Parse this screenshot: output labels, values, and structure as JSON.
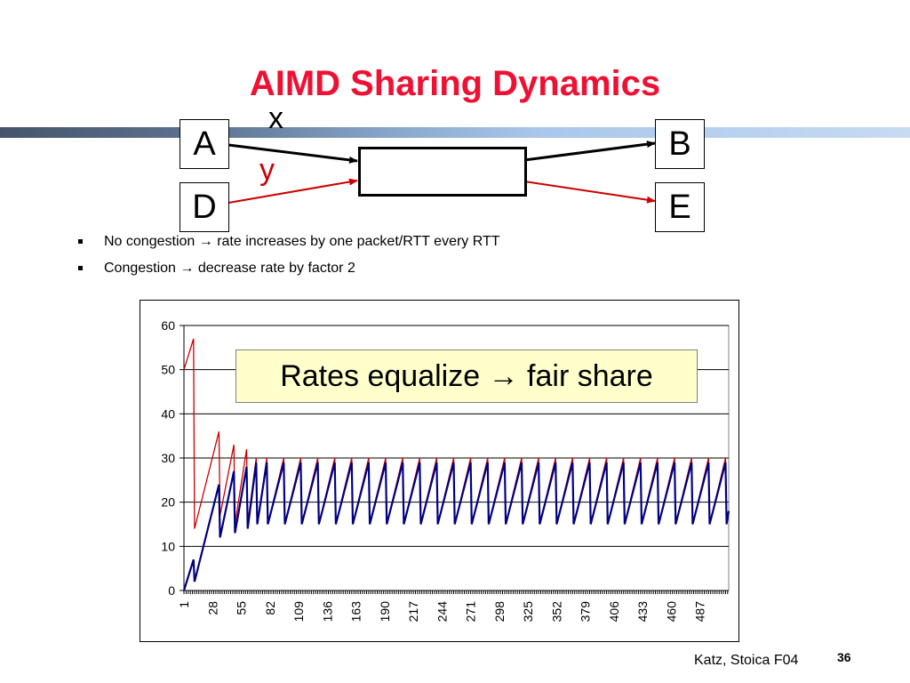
{
  "slide": {
    "title": "AIMD Sharing Dynamics",
    "page_number": "36",
    "footer": "Katz, Stoica F04",
    "accent_color": "#ee1133"
  },
  "diagram": {
    "nodes": {
      "a": "A",
      "b": "B",
      "d": "D",
      "e": "E"
    },
    "flow_x_label": "x",
    "flow_y_label": "y",
    "flow_x_color": "#000000",
    "flow_y_color": "#cc0000"
  },
  "bullets": [
    {
      "prefix": "No congestion",
      "arrow": "→",
      "text": "rate increases by one packet/RTT every RTT"
    },
    {
      "prefix": "Congestion",
      "arrow": "→",
      "text": "decrease rate by factor 2"
    }
  ],
  "callout": {
    "prefix": "Rates equalize",
    "arrow": "→",
    "text": "fair share"
  },
  "chart_data": {
    "type": "line",
    "title": "",
    "xlabel": "",
    "ylabel": "",
    "xlim": [
      1,
      514
    ],
    "ylim": [
      0,
      60
    ],
    "yticks": [
      0,
      10,
      20,
      30,
      40,
      50,
      60
    ],
    "xtick_labels": [
      "1",
      "28",
      "55",
      "82",
      "109",
      "136",
      "163",
      "190",
      "217",
      "244",
      "271",
      "298",
      "325",
      "352",
      "379",
      "406",
      "433",
      "460",
      "487"
    ],
    "grid": "horizontal",
    "series": [
      {
        "color": "#cc0000",
        "x": [
          1,
          10,
          11,
          34,
          35,
          48,
          49,
          60,
          61,
          69,
          70,
          79,
          80,
          95,
          96,
          111,
          112,
          127,
          128,
          143,
          144,
          159,
          160,
          175,
          176,
          191,
          192,
          207,
          208,
          223,
          224,
          239,
          240,
          255,
          256,
          271,
          272,
          287,
          288,
          303,
          304,
          319,
          320,
          335,
          336,
          351,
          352,
          367,
          368,
          383,
          384,
          399,
          400,
          415,
          416,
          431,
          432,
          447,
          448,
          463,
          464,
          479,
          480,
          495,
          496,
          511,
          512,
          514
        ],
        "y": [
          50,
          57,
          14,
          36,
          17,
          33,
          15,
          32,
          15,
          30,
          15,
          30,
          15,
          30,
          15,
          30,
          15,
          30,
          15,
          30,
          15,
          30,
          15,
          30,
          15,
          30,
          15,
          30,
          15,
          30,
          15,
          30,
          15,
          30,
          15,
          30,
          15,
          30,
          15,
          30,
          15,
          30,
          15,
          30,
          15,
          30,
          15,
          30,
          15,
          30,
          15,
          30,
          15,
          30,
          15,
          30,
          15,
          30,
          15,
          30,
          15,
          30,
          15,
          30,
          15,
          30,
          15,
          18
        ]
      },
      {
        "color": "#000080",
        "x": [
          1,
          10,
          11,
          34,
          35,
          48,
          49,
          60,
          61,
          69,
          70,
          79,
          80,
          95,
          96,
          111,
          112,
          127,
          128,
          143,
          144,
          159,
          160,
          175,
          176,
          191,
          192,
          207,
          208,
          223,
          224,
          239,
          240,
          255,
          256,
          271,
          272,
          287,
          288,
          303,
          304,
          319,
          320,
          335,
          336,
          351,
          352,
          367,
          368,
          383,
          384,
          399,
          400,
          415,
          416,
          431,
          432,
          447,
          448,
          463,
          464,
          479,
          480,
          495,
          496,
          511,
          512,
          514
        ],
        "y": [
          0,
          7,
          2,
          24,
          12,
          27,
          13,
          28,
          14,
          29,
          15,
          29,
          15,
          29,
          15,
          29,
          15,
          29,
          15,
          29,
          15,
          29,
          15,
          29,
          15,
          29,
          15,
          29,
          15,
          29,
          15,
          29,
          15,
          29,
          15,
          29,
          15,
          29,
          15,
          29,
          15,
          29,
          15,
          29,
          15,
          29,
          15,
          29,
          15,
          29,
          15,
          29,
          15,
          29,
          15,
          29,
          15,
          29,
          15,
          29,
          15,
          29,
          15,
          29,
          15,
          29,
          15,
          18
        ]
      }
    ]
  }
}
